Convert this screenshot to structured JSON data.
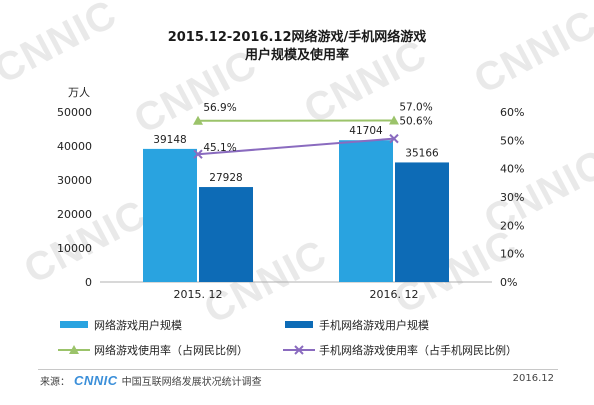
{
  "watermark": "CNNIC",
  "chart_data": {
    "type": "bar",
    "title": "2015.12-2016.12网络游戏/手机网络游戏",
    "subtitle": "用户规模及使用率",
    "categories": [
      "2015. 12",
      "2016. 12"
    ],
    "y_left_label": "万人",
    "y_left_ticks": [
      "0",
      "10000",
      "20000",
      "30000",
      "40000",
      "50000"
    ],
    "y_left_range": [
      0,
      50000
    ],
    "y_right_ticks": [
      "0%",
      "10%",
      "20%",
      "30%",
      "40%",
      "50%",
      "60%"
    ],
    "y_right_range": [
      0,
      60
    ],
    "bar_series": [
      {
        "name": "网络游戏用户规模",
        "values": [
          39148,
          41704
        ],
        "labels": [
          "39148",
          "41704"
        ],
        "color": "#29a3e0"
      },
      {
        "name": "手机网络游戏用户规模",
        "values": [
          27928,
          35166
        ],
        "labels": [
          "27928",
          "35166"
        ],
        "color": "#0d6bb6"
      }
    ],
    "line_series": [
      {
        "name": "网络游戏使用率（占网民比例）",
        "values": [
          56.9,
          57.0
        ],
        "labels": [
          "56.9%",
          "57.0%"
        ],
        "color": "#9bc36a",
        "marker": "triangle"
      },
      {
        "name": "手机网络游戏使用率（占手机网民比例）",
        "values": [
          45.1,
          50.6
        ],
        "labels": [
          "45.1%",
          "50.6%"
        ],
        "color": "#8a6bbf",
        "marker": "x"
      }
    ],
    "grid": false,
    "legend_position": "bottom"
  },
  "footer": {
    "source_prefix": "来源：",
    "logo": "CNNIC",
    "org": "中国互联网络发展状况统计调查",
    "date": "2016.12"
  }
}
